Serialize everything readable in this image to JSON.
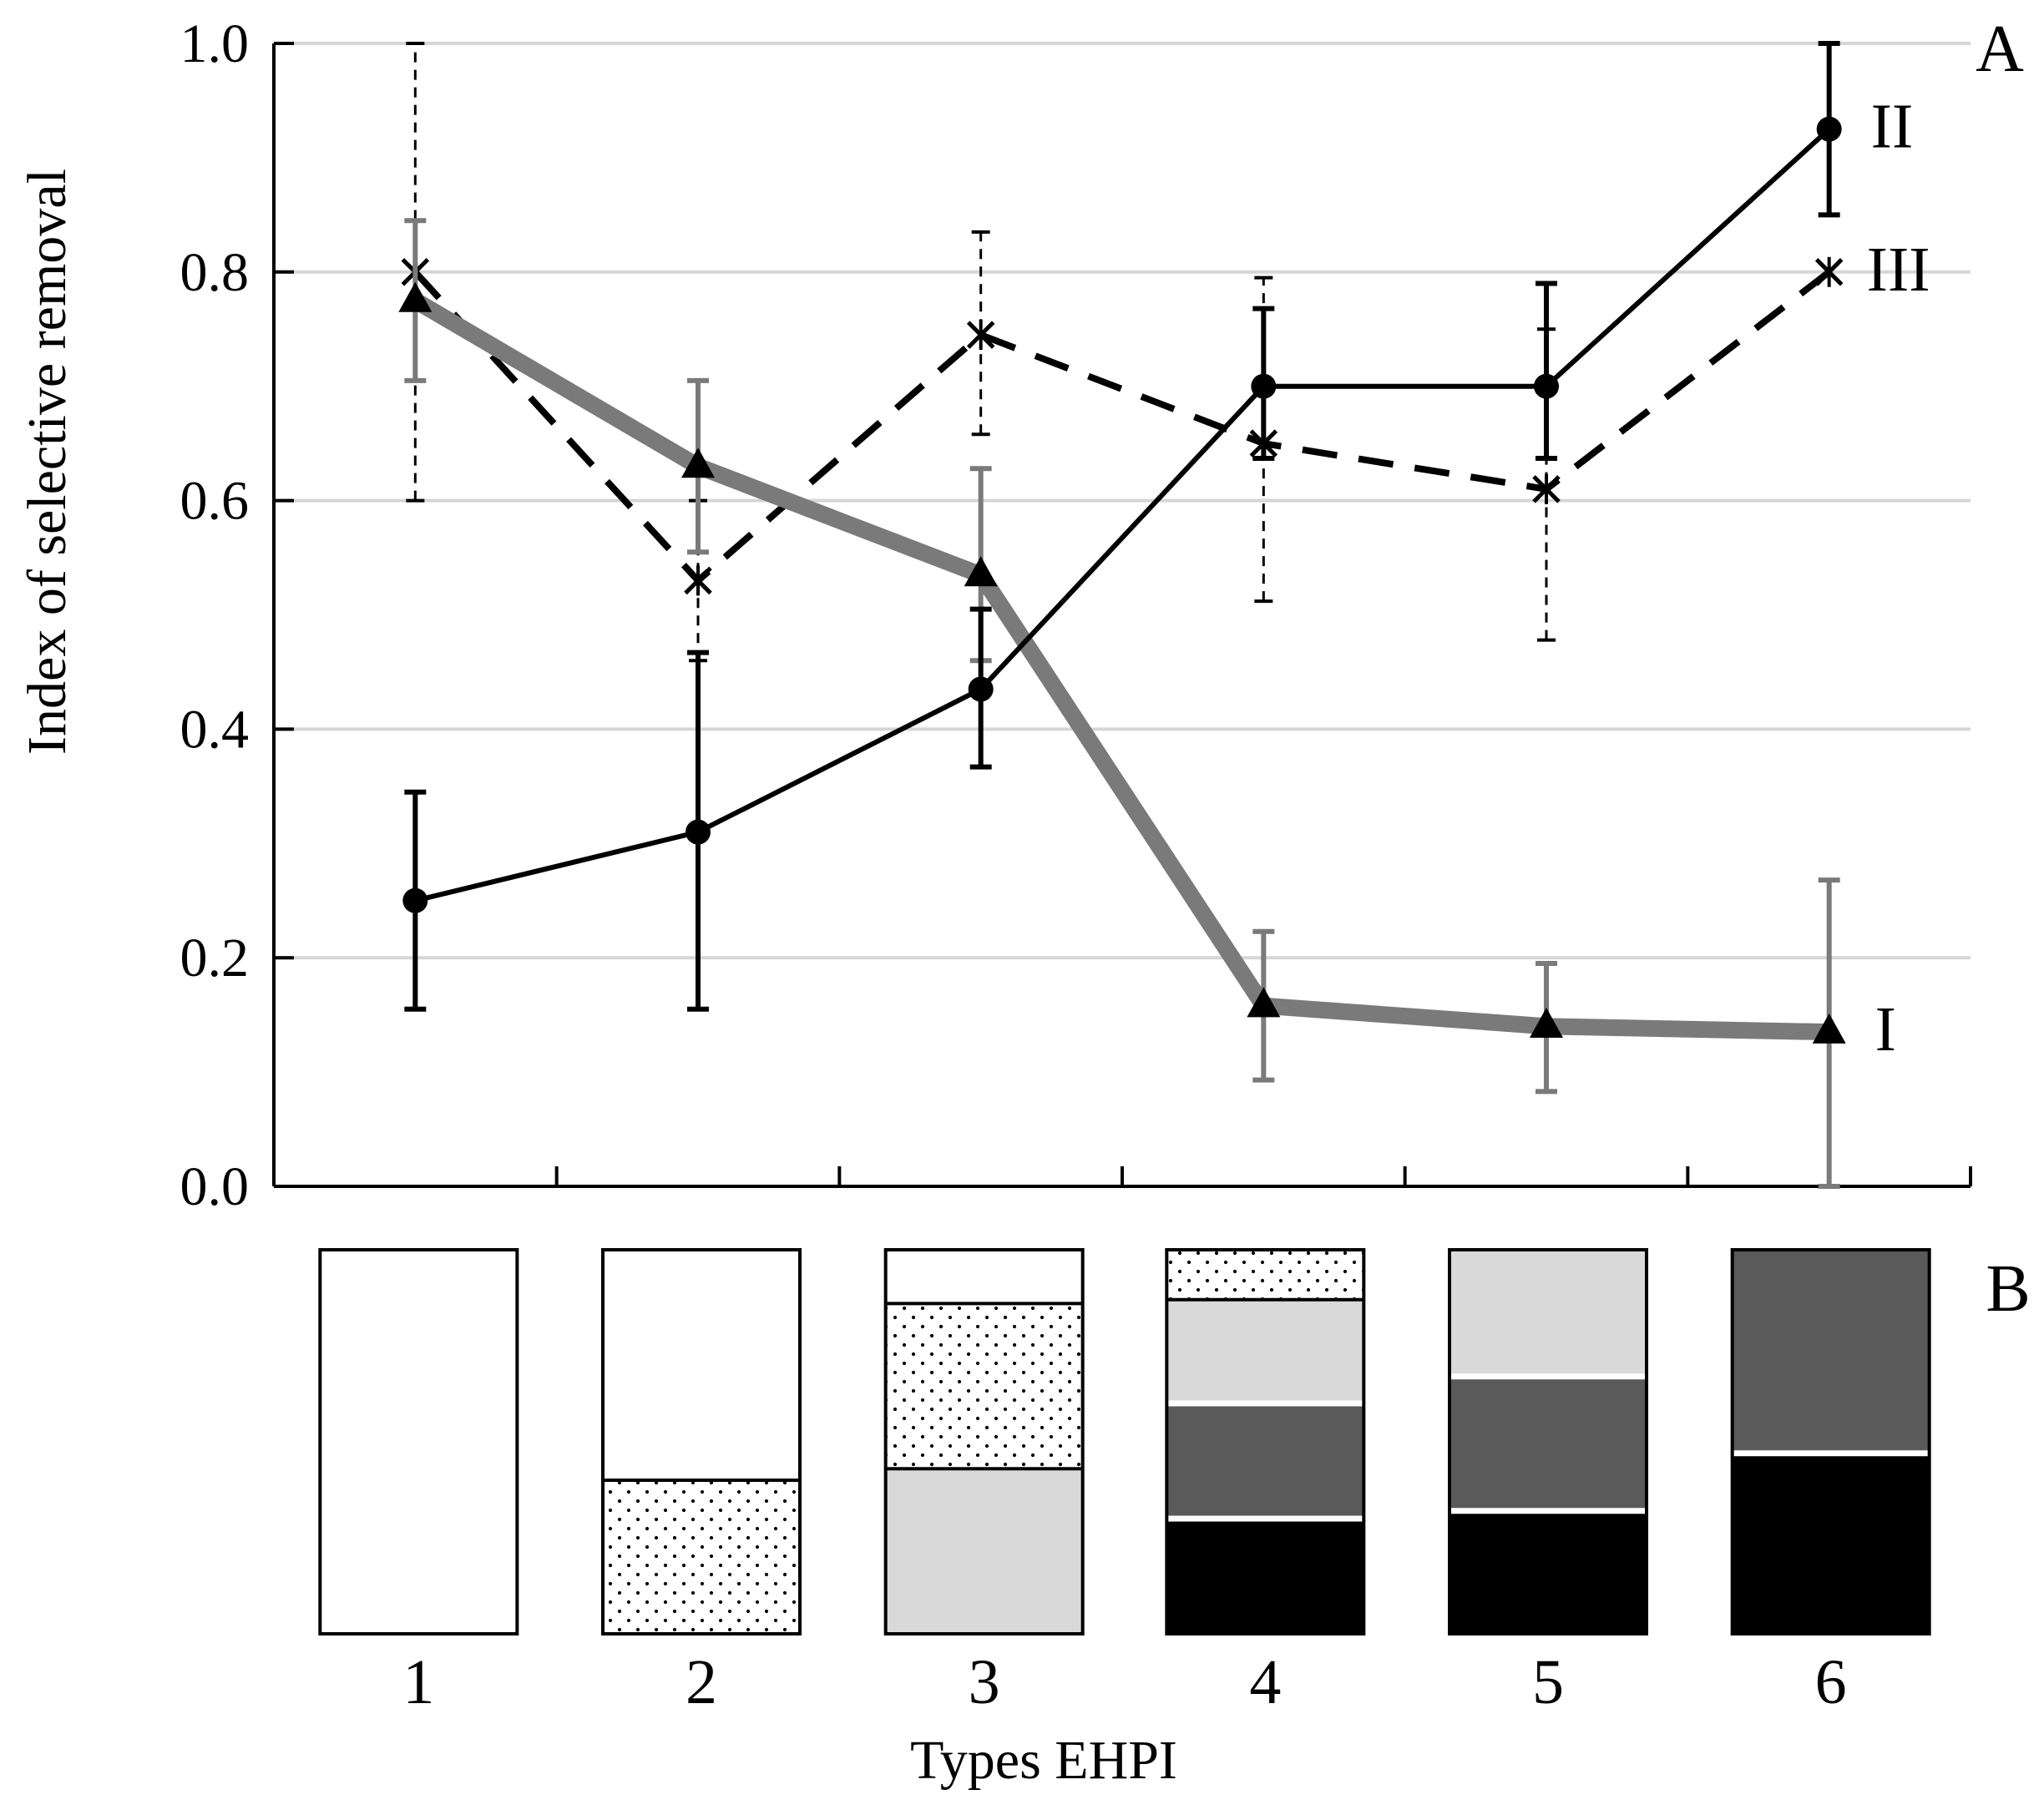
{
  "chart_data": {
    "type": "line",
    "panel_a_label": "A",
    "panel_b_label": "B",
    "ylabel": "Index of selective removal",
    "xlabel": "Types EHPI",
    "categories": [
      "1",
      "2",
      "3",
      "4",
      "5",
      "6"
    ],
    "ylim": [
      0.0,
      1.0
    ],
    "yticks": [
      {
        "value": 0.0,
        "label": "0.0"
      },
      {
        "value": 0.2,
        "label": "0.2"
      },
      {
        "value": 0.4,
        "label": "0.4"
      },
      {
        "value": 0.6,
        "label": "0.6"
      },
      {
        "value": 0.8,
        "label": "0.8"
      },
      {
        "value": 1.0,
        "label": "1.0"
      }
    ],
    "grid": true,
    "series": [
      {
        "name": "I",
        "label": "I",
        "marker": "triangle",
        "line_style": "solid-thick",
        "color": "#7a7a7a",
        "values": [
          0.775,
          0.63,
          0.535,
          0.158,
          0.14,
          0.135
        ],
        "err_low": [
          0.705,
          0.555,
          0.46,
          0.093,
          0.083,
          0.0
        ],
        "err_high": [
          0.845,
          0.705,
          0.628,
          0.223,
          0.195,
          0.268
        ]
      },
      {
        "name": "II",
        "label": "II",
        "marker": "circle",
        "line_style": "solid",
        "color": "#000000",
        "values": [
          0.25,
          0.31,
          0.435,
          0.7,
          0.7,
          0.925
        ],
        "err_low": [
          0.155,
          0.155,
          0.367,
          0.637,
          0.637,
          0.85
        ],
        "err_high": [
          0.345,
          0.467,
          0.505,
          0.768,
          0.79,
          1.0
        ]
      },
      {
        "name": "III",
        "label": "III",
        "marker": "cross",
        "line_style": "dashed",
        "color": "#000000",
        "values": [
          0.8,
          0.53,
          0.745,
          0.65,
          0.61,
          0.8
        ],
        "err_low": [
          0.6,
          0.46,
          0.658,
          0.512,
          0.478,
          0.8
        ],
        "err_high": [
          1.0,
          0.6,
          0.835,
          0.795,
          0.75,
          0.8
        ]
      }
    ],
    "panel_b": {
      "layer_colors": {
        "white": "#ffffff",
        "dotted": "#ffffff",
        "lightgray": "#d9d9d9",
        "darkgray": "#5a5a5a",
        "black": "#000000"
      },
      "columns": [
        {
          "category": "1",
          "layers": [
            {
              "fill": "white",
              "fraction": 1.0
            }
          ]
        },
        {
          "category": "2",
          "layers": [
            {
              "fill": "white",
              "fraction": 0.6
            },
            {
              "fill": "dotted",
              "fraction": 0.4
            }
          ]
        },
        {
          "category": "3",
          "layers": [
            {
              "fill": "white",
              "fraction": 0.14
            },
            {
              "fill": "dotted",
              "fraction": 0.43
            },
            {
              "fill": "lightgray",
              "fraction": 0.43
            }
          ]
        },
        {
          "category": "4",
          "layers": [
            {
              "fill": "dotted",
              "fraction": 0.13
            },
            {
              "fill": "lightgray",
              "fraction": 0.27
            },
            {
              "fill": "darkgray",
              "fraction": 0.3
            },
            {
              "fill": "black",
              "fraction": 0.3
            }
          ]
        },
        {
          "category": "5",
          "layers": [
            {
              "fill": "lightgray",
              "fraction": 0.33
            },
            {
              "fill": "darkgray",
              "fraction": 0.35
            },
            {
              "fill": "black",
              "fraction": 0.32
            }
          ]
        },
        {
          "category": "6",
          "layers": [
            {
              "fill": "darkgray",
              "fraction": 0.53
            },
            {
              "fill": "black",
              "fraction": 0.47
            }
          ]
        }
      ]
    }
  }
}
